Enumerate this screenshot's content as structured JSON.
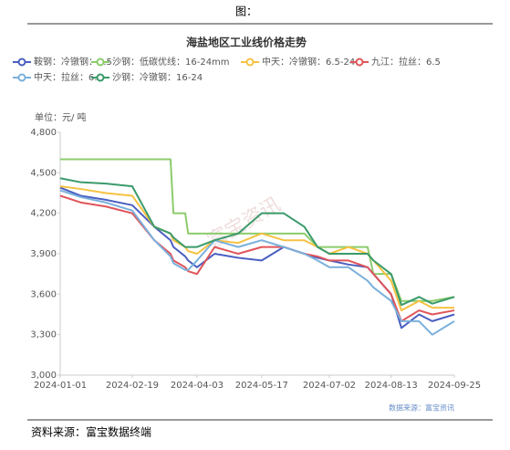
{
  "header": "图：",
  "footer": "资料来源：富宝数据终端",
  "chart_data": {
    "type": "line",
    "title": "海盐地区工业线价格走势",
    "unit_label": "单位：元/ 吨",
    "source": "数据来源：富宝资讯",
    "watermark": "富宝资讯",
    "x": [
      "2024-01-01",
      "2024-01-15",
      "2024-02-01",
      "2024-02-19",
      "2024-03-05",
      "2024-03-16",
      "2024-03-18",
      "2024-03-26",
      "2024-03-28",
      "2024-04-03",
      "2024-04-15",
      "2024-05-01",
      "2024-05-17",
      "2024-06-01",
      "2024-06-15",
      "2024-06-24",
      "2024-07-02",
      "2024-07-15",
      "2024-07-28",
      "2024-08-01",
      "2024-08-13",
      "2024-08-20",
      "2024-09-01",
      "2024-09-10",
      "2024-09-25"
    ],
    "xlim": [
      "2024-01-01",
      "2024-09-25"
    ],
    "xticks": [
      "2024-01-01",
      "2024-02-19",
      "2024-04-03",
      "2024-05-17",
      "2024-07-02",
      "2024-08-13",
      "2024-09-25"
    ],
    "ylim": [
      3000,
      4800
    ],
    "yticks": [
      {
        "value": 3000,
        "label": "3,000"
      },
      {
        "value": 3300,
        "label": "3,300"
      },
      {
        "value": 3600,
        "label": "3,600"
      },
      {
        "value": 3900,
        "label": "3,900"
      },
      {
        "value": 4200,
        "label": "4,200"
      },
      {
        "value": 4500,
        "label": "4,500"
      },
      {
        "value": 4800,
        "label": "4,800"
      }
    ],
    "grid": false,
    "series": [
      {
        "name": "鞍钢：冷镦钢：6.5",
        "color": "#4a5fc1",
        "values": [
          4390,
          4330,
          4300,
          4260,
          4100,
          4000,
          3950,
          3880,
          3850,
          3800,
          3900,
          3870,
          3850,
          3950,
          3900,
          3870,
          3850,
          3820,
          3800,
          3750,
          3600,
          3350,
          3450,
          3400,
          3450
        ]
      },
      {
        "name": "沙钢：低碳优线：16-24mm",
        "color": "#8ccc6c",
        "values": [
          4600,
          4600,
          4600,
          4600,
          4600,
          4600,
          4200,
          4200,
          4050,
          4050,
          4050,
          4050,
          4050,
          4050,
          4050,
          3950,
          3950,
          3950,
          3950,
          3750,
          3750,
          3550,
          3550,
          3550,
          3580
        ]
      },
      {
        "name": "中天：冷镦钢：6.5-24",
        "color": "#f5c242",
        "values": [
          4400,
          4380,
          4350,
          4330,
          4100,
          4050,
          4000,
          3950,
          3920,
          3900,
          4000,
          3980,
          4050,
          4000,
          4000,
          3950,
          3900,
          3950,
          3900,
          3850,
          3700,
          3480,
          3550,
          3500,
          3500
        ]
      },
      {
        "name": "九江：拉丝：6.5",
        "color": "#e0555a",
        "values": [
          4330,
          4280,
          4250,
          4200,
          4000,
          3900,
          3850,
          3800,
          3770,
          3750,
          3950,
          3900,
          3950,
          3950,
          3900,
          3880,
          3850,
          3850,
          3800,
          3750,
          3600,
          3400,
          3480,
          3450,
          3480
        ]
      },
      {
        "name": "中天：拉丝：6.5",
        "color": "#7ab0dc",
        "values": [
          4370,
          4320,
          4280,
          4220,
          4000,
          3880,
          3830,
          3780,
          3780,
          3850,
          4000,
          3950,
          4000,
          3950,
          3900,
          3850,
          3800,
          3800,
          3700,
          3650,
          3550,
          3400,
          3400,
          3300,
          3400
        ]
      },
      {
        "name": "沙钢：冷镦钢：16-24",
        "color": "#3a9a6a",
        "values": [
          4460,
          4430,
          4420,
          4400,
          4100,
          4050,
          4020,
          3950,
          3950,
          3950,
          4000,
          4050,
          4200,
          4200,
          4100,
          3950,
          3900,
          3900,
          3900,
          3850,
          3750,
          3520,
          3580,
          3530,
          3580
        ]
      }
    ]
  }
}
